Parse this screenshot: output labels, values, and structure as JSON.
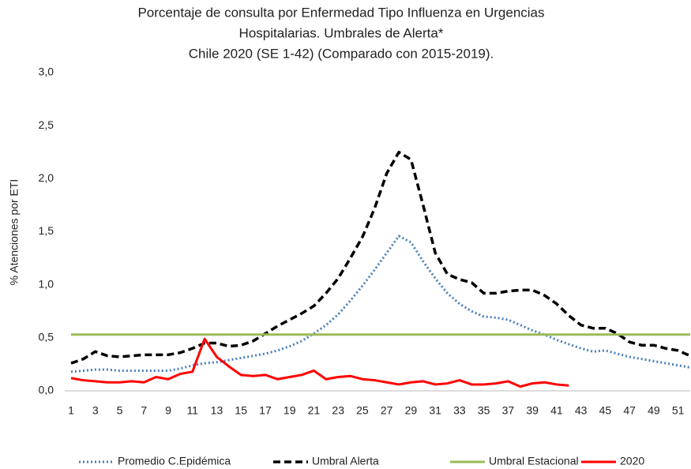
{
  "chart_data": {
    "type": "line",
    "title": [
      "Porcentaje de consulta por  Enfermedad Tipo Influenza en Urgencias",
      "Hospitalarias. Umbrales de Alerta*",
      "Chile  2020 (SE 1-42) (Comparado con 2015-2019)."
    ],
    "y_label": "% Atenciones por  ETI",
    "x": [
      1,
      2,
      3,
      4,
      5,
      6,
      7,
      8,
      9,
      10,
      11,
      12,
      13,
      14,
      15,
      16,
      17,
      18,
      19,
      20,
      21,
      22,
      23,
      24,
      25,
      26,
      27,
      28,
      29,
      30,
      31,
      32,
      33,
      34,
      35,
      36,
      37,
      38,
      39,
      40,
      41,
      42,
      43,
      44,
      45,
      46,
      47,
      48,
      49,
      50,
      51,
      52
    ],
    "xlim": [
      1,
      52
    ],
    "xticks": [
      1,
      3,
      5,
      7,
      9,
      11,
      13,
      15,
      17,
      19,
      21,
      23,
      25,
      27,
      29,
      31,
      33,
      35,
      37,
      39,
      41,
      43,
      45,
      47,
      49,
      51
    ],
    "ylim": [
      0,
      3
    ],
    "yticks": [
      {
        "value": 0,
        "label": "0,0"
      },
      {
        "value": 0.5,
        "label": "0,5"
      },
      {
        "value": 1,
        "label": "1,0"
      },
      {
        "value": 1.5,
        "label": "1,5"
      },
      {
        "value": 2,
        "label": "2,0"
      },
      {
        "value": 2.5,
        "label": "2,5"
      },
      {
        "value": 3,
        "label": "3,0"
      }
    ],
    "grid": false,
    "legend": "bottom",
    "series": [
      {
        "name": "Promedio  C.Epidémica",
        "color": "#4a7ebb",
        "dash": "dotted",
        "values": [
          0.18,
          0.19,
          0.2,
          0.2,
          0.19,
          0.19,
          0.19,
          0.19,
          0.19,
          0.21,
          0.24,
          0.26,
          0.27,
          0.29,
          0.31,
          0.33,
          0.35,
          0.38,
          0.42,
          0.47,
          0.54,
          0.62,
          0.72,
          0.85,
          0.99,
          1.14,
          1.3,
          1.46,
          1.4,
          1.22,
          1.06,
          0.92,
          0.82,
          0.75,
          0.7,
          0.69,
          0.67,
          0.62,
          0.57,
          0.53,
          0.48,
          0.44,
          0.4,
          0.37,
          0.38,
          0.35,
          0.32,
          0.3,
          0.28,
          0.26,
          0.24,
          0.22
        ]
      },
      {
        "name": "Umbral Alerta",
        "color": "#000000",
        "dash": "dashed",
        "values": [
          0.26,
          0.3,
          0.37,
          0.33,
          0.32,
          0.33,
          0.34,
          0.34,
          0.34,
          0.36,
          0.4,
          0.45,
          0.45,
          0.42,
          0.43,
          0.47,
          0.54,
          0.61,
          0.67,
          0.73,
          0.8,
          0.92,
          1.06,
          1.25,
          1.45,
          1.72,
          2.05,
          2.25,
          2.18,
          1.75,
          1.3,
          1.1,
          1.05,
          1.02,
          0.92,
          0.92,
          0.94,
          0.95,
          0.95,
          0.9,
          0.82,
          0.71,
          0.62,
          0.59,
          0.59,
          0.54,
          0.46,
          0.43,
          0.43,
          0.4,
          0.38,
          0.33
        ]
      },
      {
        "name": "Umbral Estacional",
        "color": "#9bbb59",
        "dash": "solid",
        "values": [
          0.53,
          0.53,
          0.53,
          0.53,
          0.53,
          0.53,
          0.53,
          0.53,
          0.53,
          0.53,
          0.53,
          0.53,
          0.53,
          0.53,
          0.53,
          0.53,
          0.53,
          0.53,
          0.53,
          0.53,
          0.53,
          0.53,
          0.53,
          0.53,
          0.53,
          0.53,
          0.53,
          0.53,
          0.53,
          0.53,
          0.53,
          0.53,
          0.53,
          0.53,
          0.53,
          0.53,
          0.53,
          0.53,
          0.53,
          0.53,
          0.53,
          0.53,
          0.53,
          0.53,
          0.53,
          0.53,
          0.53,
          0.53,
          0.53,
          0.53,
          0.53,
          0.53
        ]
      },
      {
        "name": "2020",
        "color": "#ff0000",
        "dash": "solid",
        "values": [
          0.12,
          0.1,
          0.09,
          0.08,
          0.08,
          0.09,
          0.08,
          0.13,
          0.11,
          0.16,
          0.18,
          0.49,
          0.32,
          0.23,
          0.15,
          0.14,
          0.15,
          0.11,
          0.13,
          0.15,
          0.19,
          0.11,
          0.13,
          0.14,
          0.11,
          0.1,
          0.08,
          0.06,
          0.08,
          0.09,
          0.06,
          0.07,
          0.1,
          0.06,
          0.06,
          0.07,
          0.09,
          0.04,
          0.07,
          0.08,
          0.06,
          0.05,
          null,
          null,
          null,
          null,
          null,
          null,
          null,
          null,
          null,
          null
        ]
      }
    ]
  }
}
